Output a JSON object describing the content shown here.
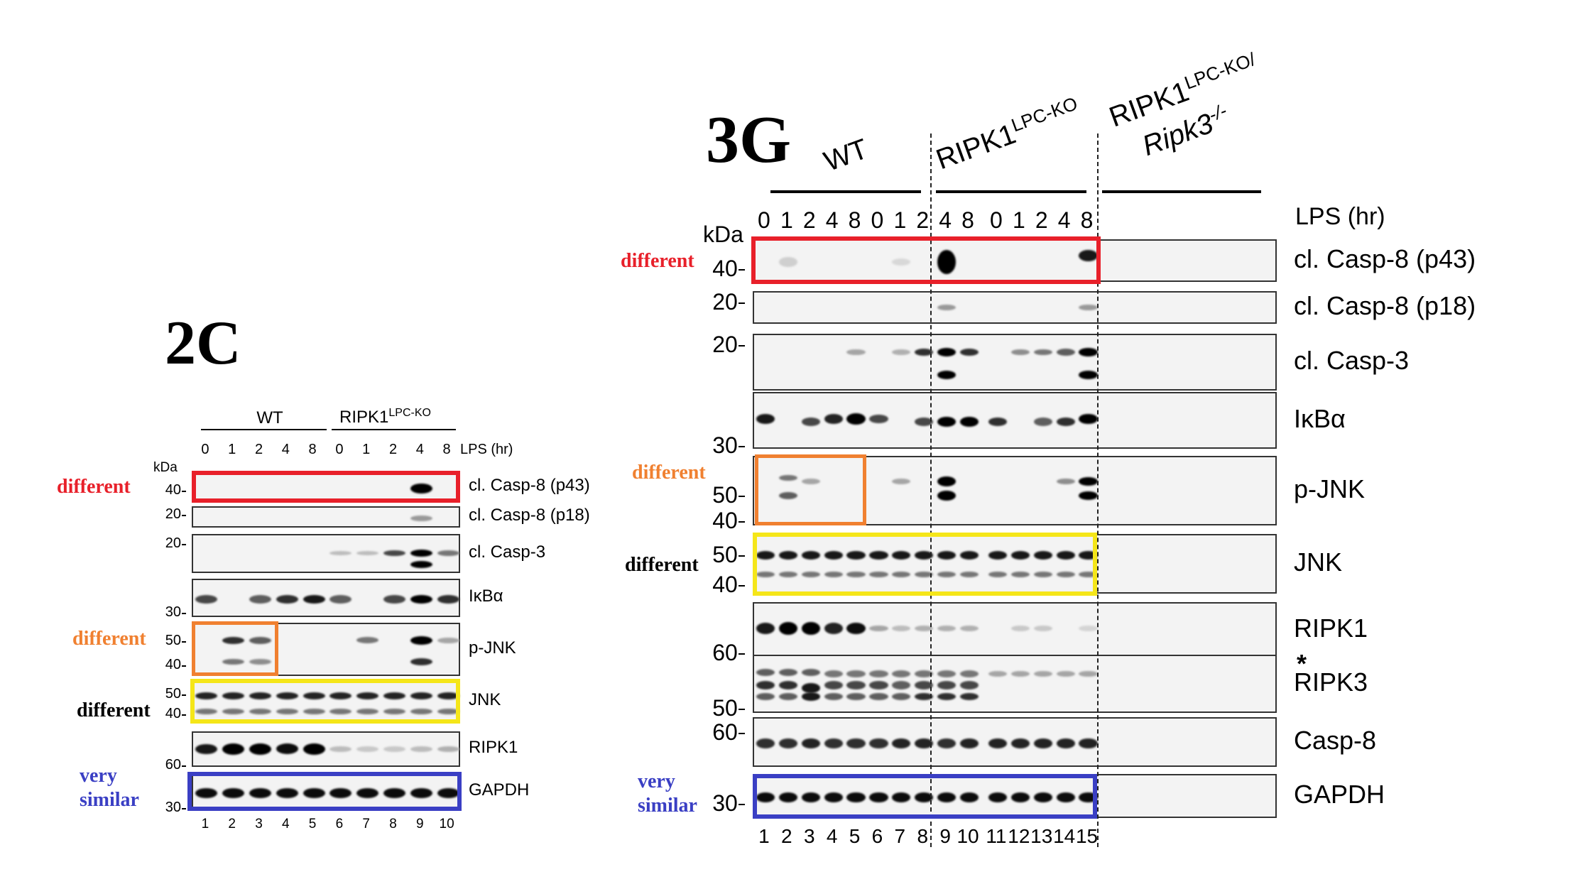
{
  "panel_2c": {
    "title": "2C",
    "group_wt": "WT",
    "group_ko_base": "RIPK1",
    "group_ko_sup": "LPC-KO",
    "lps_times": [
      "0",
      "1",
      "2",
      "4",
      "8",
      "0",
      "1",
      "2",
      "4",
      "8"
    ],
    "lps_label": "LPS (hr)",
    "kda_label": "kDa",
    "lanes": [
      "1",
      "2",
      "3",
      "4",
      "5",
      "6",
      "7",
      "8",
      "9",
      "10"
    ],
    "blots": [
      {
        "label": "cl. Casp-8 (p43)",
        "markers": [
          "40"
        ]
      },
      {
        "label": "cl. Casp-8 (p18)",
        "markers": [
          "20"
        ]
      },
      {
        "label": "cl. Casp-3",
        "markers": [
          "20"
        ]
      },
      {
        "label": "IκBα",
        "markers": [
          "30"
        ]
      },
      {
        "label": "p-JNK",
        "markers": [
          "50",
          "40"
        ]
      },
      {
        "label": "JNK",
        "markers": [
          "50",
          "40"
        ]
      },
      {
        "label": "RIPK1",
        "markers": [
          "60"
        ]
      },
      {
        "label": "GAPDH",
        "markers": [
          "30"
        ]
      }
    ],
    "annotations": {
      "casp8": "different",
      "pjnk": "different",
      "jnk": "different",
      "gapdh_line1": "very",
      "gapdh_line2": "similar"
    }
  },
  "panel_3g": {
    "title": "3G",
    "group_wt": "WT",
    "group_ko_base": "RIPK1",
    "group_ko_sup": "LPC-KO",
    "group_dko_line1_base": "RIPK1",
    "group_dko_line1_sup": "LPC-KO/",
    "group_dko_line2_base": "Ripk3",
    "group_dko_line2_sup": "-/-",
    "lps_times": [
      "0",
      "1",
      "2",
      "4",
      "8",
      "0",
      "1",
      "2",
      "4",
      "8",
      "0",
      "1",
      "2",
      "4",
      "8"
    ],
    "lps_label": "LPS (hr)",
    "kda_label": "kDa",
    "lanes": [
      "1",
      "2",
      "3",
      "4",
      "5",
      "6",
      "7",
      "8",
      "9",
      "10",
      "11",
      "12",
      "13",
      "14",
      "15"
    ],
    "blots": [
      {
        "label": "cl. Casp-8 (p43)",
        "markers": [
          "40"
        ]
      },
      {
        "label": "cl. Casp-8 (p18)",
        "markers": [
          "20"
        ]
      },
      {
        "label": "cl. Casp-3",
        "markers": [
          "20"
        ]
      },
      {
        "label": "IκBα",
        "markers": [
          "30"
        ]
      },
      {
        "label": "p-JNK",
        "markers": [
          "50",
          "40"
        ]
      },
      {
        "label": "JNK",
        "markers": [
          "50",
          "40"
        ]
      },
      {
        "label": "RIPK1",
        "markers": [
          "60"
        ]
      },
      {
        "label": "RIPK3",
        "markers": [
          "50"
        ],
        "star": "*"
      },
      {
        "label": "Casp-8",
        "markers": [
          "60"
        ]
      },
      {
        "label": "GAPDH",
        "markers": [
          "30"
        ]
      }
    ],
    "annotations": {
      "casp8": "different",
      "pjnk": "different",
      "jnk": "different",
      "gapdh_line1": "very",
      "gapdh_line2": "similar"
    }
  },
  "colors": {
    "red": "#e8202a",
    "orange": "#f08030",
    "yellow": "#f5e619",
    "blue": "#3a3fc4",
    "black": "#000000"
  }
}
